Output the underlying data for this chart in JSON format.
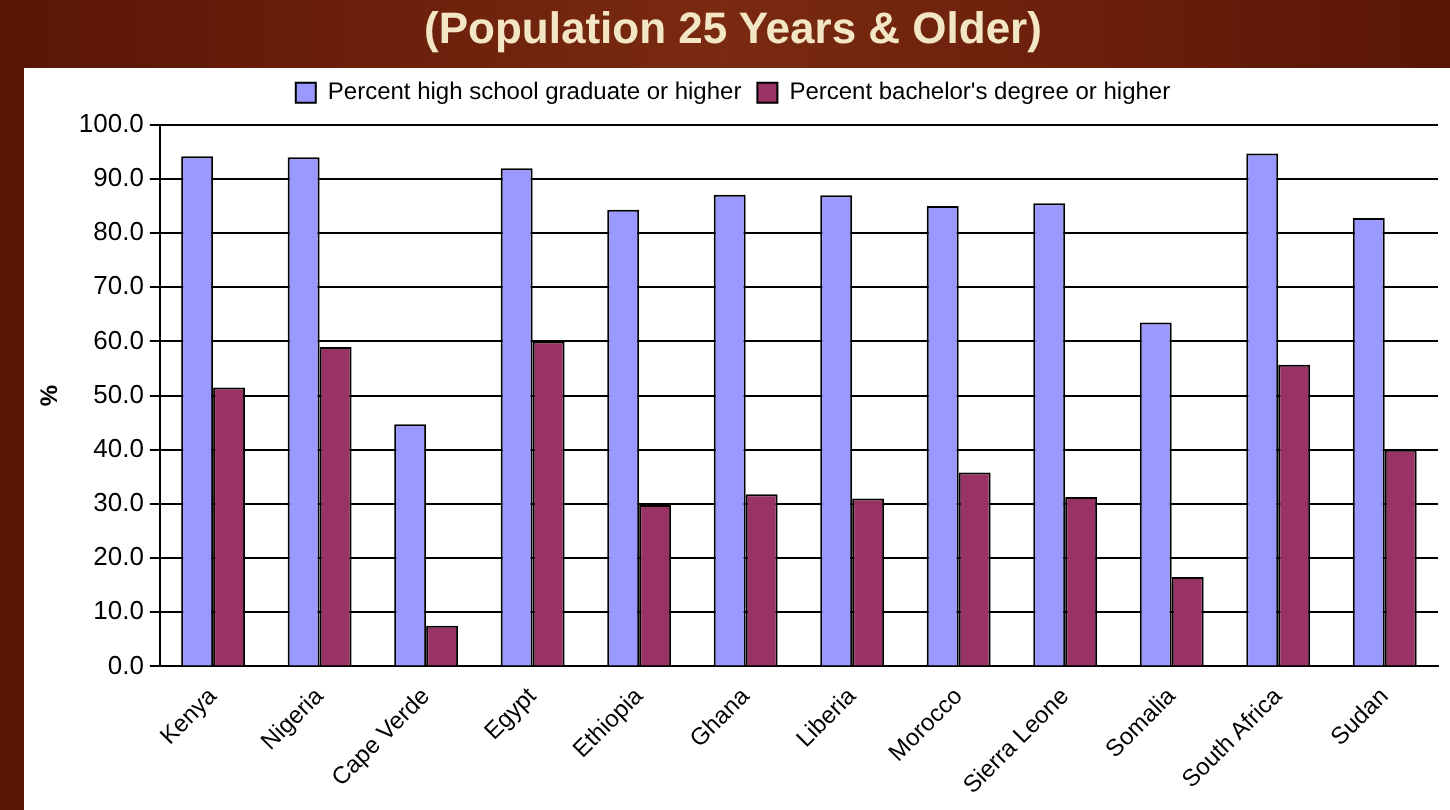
{
  "chart_data": {
    "type": "bar",
    "title": "(Population 25 Years & Older)",
    "ylabel": "%",
    "categories": [
      "Kenya",
      "Nigeria",
      "Cape Verde",
      "Egypt",
      "Ethiopia",
      "Ghana",
      "Liberia",
      "Morocco",
      "Sierra Leone",
      "Somalia",
      "South Africa",
      "Sudan"
    ],
    "series": [
      {
        "name": "Percent high school graduate or higher",
        "color": "#9999ff",
        "values": [
          94.2,
          94.0,
          44.7,
          92.0,
          84.3,
          87.1,
          87.0,
          85.0,
          85.5,
          63.5,
          94.7,
          82.8
        ]
      },
      {
        "name": "Percent bachelor's degree or higher",
        "color": "#993366",
        "values": [
          51.5,
          59.0,
          7.5,
          60.0,
          29.8,
          31.8,
          31.0,
          35.8,
          31.3,
          16.5,
          55.7,
          40.0
        ]
      }
    ],
    "ylim": [
      0,
      100
    ],
    "yticks": [
      {
        "value": 0,
        "label": "0.0"
      },
      {
        "value": 10,
        "label": "10.0"
      },
      {
        "value": 20,
        "label": "20.0"
      },
      {
        "value": 30,
        "label": "30.0"
      },
      {
        "value": 40,
        "label": "40.0"
      },
      {
        "value": 50,
        "label": "50.0"
      },
      {
        "value": 60,
        "label": "60.0"
      },
      {
        "value": 70,
        "label": "70.0"
      },
      {
        "value": 80,
        "label": "80.0"
      },
      {
        "value": 90,
        "label": "90.0"
      },
      {
        "value": 100,
        "label": "100.0"
      }
    ],
    "grid": "y",
    "legend": "top"
  }
}
